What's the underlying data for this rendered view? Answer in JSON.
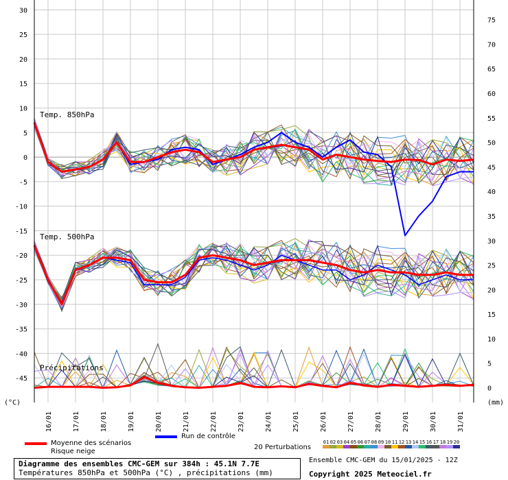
{
  "chart_data": {
    "type": "line",
    "title": "Diagramme des ensembles CMC-GEM sur 384h : 45.1N 7.7E",
    "subtitle": "Températures 850hPa et 500hPa (°C) , précipitations (mm)",
    "left_axis": {
      "unit_label": "(°C)",
      "ticks": [
        30,
        25,
        20,
        15,
        10,
        5,
        0,
        -5,
        -10,
        -15,
        -20,
        -25,
        -30,
        -35,
        -40,
        -45
      ],
      "range": [
        -50,
        32
      ]
    },
    "right_axis": {
      "unit_label": "(mm)",
      "ticks": [
        75,
        70,
        65,
        60,
        55,
        50,
        45,
        40,
        35,
        30,
        25,
        20,
        15,
        10,
        5,
        0
      ],
      "range": [
        -3,
        79
      ]
    },
    "x_axis": {
      "labels": [
        "16/01",
        "17/01",
        "18/01",
        "19/01",
        "20/01",
        "21/01",
        "22/01",
        "23/01",
        "24/01",
        "25/01",
        "26/01",
        "27/01",
        "28/01",
        "29/01",
        "30/01",
        "31/01"
      ],
      "range_hours": [
        0,
        384
      ]
    },
    "panel_labels": {
      "t850": "Temp. 850hPa",
      "t500": "Temp. 500hPa",
      "precip": "Précipitations"
    },
    "colors": {
      "mean": "#ff0000",
      "control": "#0000ff",
      "perturbations": [
        "#e69a37",
        "#95a73c",
        "#d4b827",
        "#9c3fc8",
        "#874d12",
        "#2d9a2f",
        "#2eaaaa",
        "#3c8fd7",
        "#f0b3e6",
        "#7a5c2c",
        "#ffc400",
        "#a0522d",
        "#1c5aa8",
        "#b0c6f0",
        "#2bbd6e",
        "#3c5c6a",
        "#555555",
        "#c07bdc",
        "#b48cff",
        "#2a2f8c"
      ]
    },
    "t850": {
      "hours": [
        0,
        12,
        24,
        36,
        48,
        60,
        72,
        84,
        96,
        108,
        120,
        132,
        144,
        156,
        168,
        180,
        192,
        204,
        216,
        228,
        240,
        252,
        264,
        276,
        288,
        300,
        312,
        324,
        336,
        348,
        360,
        372,
        384
      ],
      "mean": [
        7,
        -1,
        -3,
        -2.5,
        -2,
        -0.5,
        3,
        -1,
        -1,
        0,
        1,
        1.5,
        1,
        -1,
        -0.5,
        0,
        1.5,
        2,
        2.5,
        2,
        1.5,
        -0.5,
        0.5,
        0,
        -0.5,
        -0.8,
        -1,
        -0.5,
        -0.6,
        -1.5,
        -0.5,
        -0.8,
        -0.5
      ],
      "control": [
        7,
        -1,
        -3,
        -2.5,
        -2,
        -0.5,
        3,
        -1.5,
        -1,
        -0.5,
        1.5,
        2,
        1.5,
        -1.5,
        -0.5,
        0.5,
        2,
        3,
        5,
        3,
        2,
        0,
        2,
        3.5,
        1,
        0.5,
        -2,
        -16,
        -12,
        -9,
        -4,
        -3,
        -3
      ]
    },
    "t500": {
      "hours": [
        0,
        12,
        24,
        36,
        48,
        60,
        72,
        84,
        96,
        108,
        120,
        132,
        144,
        156,
        168,
        180,
        192,
        204,
        216,
        228,
        240,
        252,
        264,
        276,
        288,
        300,
        312,
        324,
        336,
        348,
        360,
        372,
        384
      ],
      "mean": [
        -18,
        -25,
        -30,
        -23,
        -22,
        -20.5,
        -20.5,
        -21,
        -25,
        -25.5,
        -25.5,
        -24,
        -20.5,
        -20,
        -20.5,
        -21,
        -22,
        -21.5,
        -21,
        -21,
        -21,
        -21.5,
        -22,
        -23,
        -23.5,
        -23,
        -23.5,
        -23.5,
        -24,
        -24,
        -23.5,
        -24,
        -24
      ],
      "control": [
        -18,
        -25,
        -30,
        -23,
        -22,
        -20.5,
        -21,
        -21.5,
        -26,
        -26,
        -26,
        -24.5,
        -21,
        -20.5,
        -21,
        -22,
        -23,
        -22,
        -20,
        -21,
        -22,
        -23,
        -23,
        -25,
        -24,
        -22,
        -23,
        -24,
        -26,
        -25,
        -24,
        -25,
        -25
      ]
    },
    "precip": {
      "hours": [
        0,
        12,
        24,
        36,
        48,
        60,
        72,
        84,
        96,
        108,
        120,
        132,
        144,
        156,
        168,
        180,
        192,
        204,
        216,
        228,
        240,
        252,
        264,
        276,
        288,
        300,
        312,
        324,
        336,
        348,
        360,
        372,
        384
      ],
      "mean": [
        0,
        0.2,
        0.2,
        0.2,
        0.2,
        0,
        0.1,
        0.5,
        2.2,
        1,
        0.4,
        0.1,
        0,
        0.2,
        0.4,
        1,
        0.2,
        0.1,
        0.3,
        0.1,
        0.8,
        0.4,
        0.1,
        1,
        0.5,
        0.2,
        0.6,
        0.4,
        0.2,
        0.4,
        0.6,
        0.4,
        0.6
      ]
    }
  },
  "legend": {
    "mean_label": "Moyenne des scénarios",
    "snow_risk_label": "Risque neige",
    "control_label": "Run de contrôle",
    "perturbations_label": "20 Perturbations",
    "perturbation_numbers": [
      "01",
      "02",
      "03",
      "04",
      "05",
      "06",
      "07",
      "08",
      "09",
      "10",
      "11",
      "12",
      "13",
      "14",
      "15",
      "16",
      "17",
      "18",
      "19",
      "20"
    ]
  },
  "footer": {
    "title": "Diagramme des ensembles CMC-GEM sur 384h : 45.1N 7.7E",
    "subtitle": "Températures 850hPa et 500hPa (°C) , précipitations (mm)",
    "ensemble_info": "Ensemble CMC-GEM du 15/01/2025 - 12Z",
    "copyright": "Copyright 2025 Meteociel.fr"
  }
}
